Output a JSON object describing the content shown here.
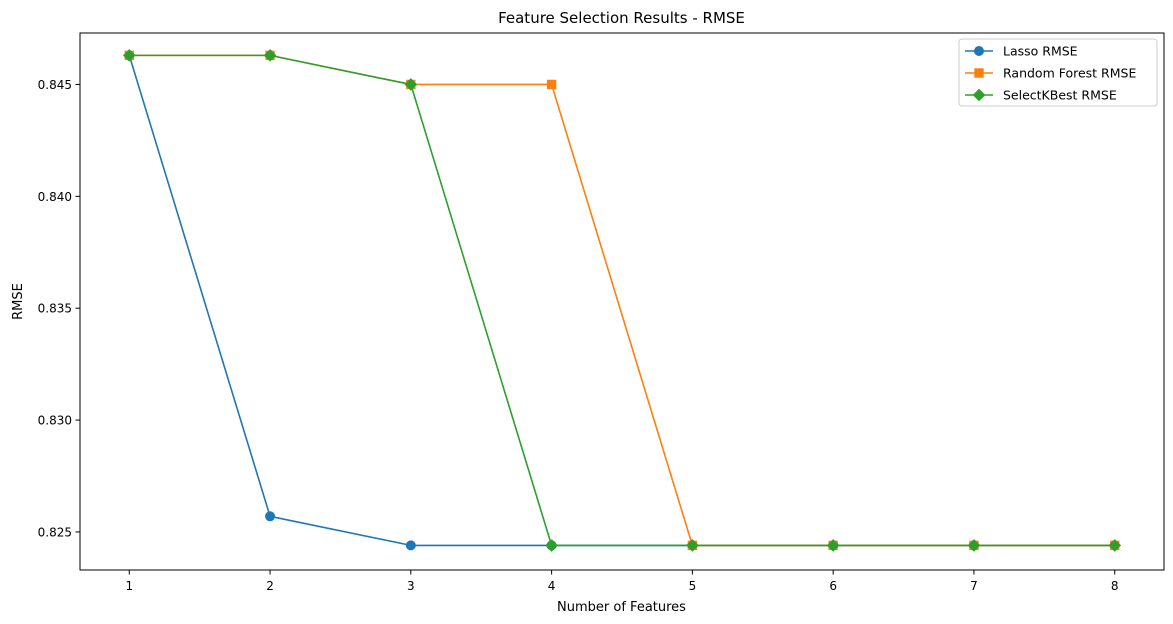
{
  "chart_data": {
    "type": "line",
    "title": "Feature Selection Results - RMSE",
    "xlabel": "Number of Features",
    "ylabel": "RMSE",
    "x": [
      1,
      2,
      3,
      4,
      5,
      6,
      7,
      8
    ],
    "xlim": [
      0.65,
      8.35
    ],
    "ylim": [
      0.8233,
      0.8473
    ],
    "xticks": [
      1,
      2,
      3,
      4,
      5,
      6,
      7,
      8
    ],
    "yticks": [
      0.825,
      0.83,
      0.835,
      0.84,
      0.845
    ],
    "yticks_labels": [
      "0.825",
      "0.830",
      "0.835",
      "0.840",
      "0.845"
    ],
    "grid": false,
    "legend_position": "top-right",
    "series": [
      {
        "name": "Lasso RMSE",
        "color": "#1f77b4",
        "marker": "circle",
        "values": [
          0.8463,
          0.8257,
          0.8244,
          0.8244,
          0.8244,
          0.8244,
          0.8244,
          0.8244
        ]
      },
      {
        "name": "Random Forest RMSE",
        "color": "#ff7f0e",
        "marker": "square",
        "values": [
          0.8463,
          0.8463,
          0.845,
          0.845,
          0.8244,
          0.8244,
          0.8244,
          0.8244
        ]
      },
      {
        "name": "SelectKBest RMSE",
        "color": "#2ca02c",
        "marker": "diamond",
        "values": [
          0.8463,
          0.8463,
          0.845,
          0.8244,
          0.8244,
          0.8244,
          0.8244,
          0.8244
        ]
      }
    ]
  }
}
